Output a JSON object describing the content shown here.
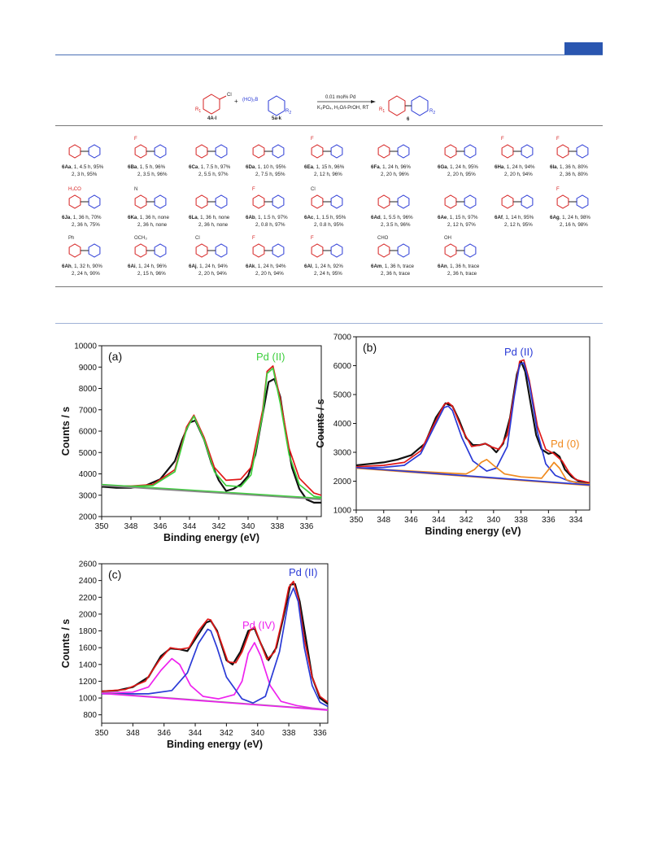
{
  "scheme": {
    "reactant1": "4A-l",
    "reactant1_sub": "R",
    "reactant1_sub_idx": "1",
    "reactant1_group": "Cl",
    "plus": "+",
    "reactant2_group": "(HO)₂B",
    "reactant2": "5a-k",
    "reactant2_sub": "R",
    "reactant2_sub_idx": "2",
    "catalyst": "0.01 mol% Pd",
    "conditions": "K₃PO₄, H₂O/i-PrOH, RT",
    "product": "6",
    "product_r1": "R",
    "product_r1_idx": "1",
    "product_r2": "R",
    "product_r2_idx": "2"
  },
  "products": [
    {
      "id": "6Aa",
      "l1": ", 1, 4.5 h, 95%",
      "l2": "2, 3 h, 95%",
      "sub": ""
    },
    {
      "id": "6Ba",
      "l1": ", 1, 5 h, 96%",
      "l2": "2, 3.5 h, 96%",
      "sub": "F"
    },
    {
      "id": "6Ca",
      "l1": ", 1, 7.5 h, 97%",
      "l2": "2, 5.5 h, 97%",
      "sub": ""
    },
    {
      "id": "6Da",
      "l1": ", 1, 10 h, 95%",
      "l2": "2, 7.5 h, 95%",
      "sub": ""
    },
    {
      "id": "6Ea",
      "l1": ", 1, 15 h, 96%",
      "l2": "2, 12 h, 96%",
      "sub": "F"
    },
    {
      "id": "6Fa",
      "l1": ", 1, 24 h, 96%",
      "l2": "2, 20 h, 96%",
      "sub": ""
    },
    {
      "id": "6Ga",
      "l1": ", 1, 24 h, 95%",
      "l2": "2, 20 h, 95%",
      "sub": ""
    },
    {
      "id": "6Ha",
      "l1": ", 1, 24 h, 94%",
      "l2": "2, 20 h, 94%",
      "sub": "F"
    },
    {
      "id": "6Ia",
      "l1": ", 1, 36 h, 80%",
      "l2": "2, 36 h, 80%",
      "sub": "F"
    },
    {
      "id": "6Ja",
      "l1": ", 1, 36 h, 70%",
      "l2": "2, 36 h, 75%",
      "sub": "H₃CO"
    },
    {
      "id": "6Ka",
      "l1": ", 1, 36 h, none",
      "l2": "2, 36 h, none",
      "sub": "N"
    },
    {
      "id": "6La",
      "l1": ", 1, 36 h, none",
      "l2": "2, 36 h, none",
      "sub": ""
    },
    {
      "id": "6Ab",
      "l1": ", 1, 1.5 h, 97%",
      "l2": "2, 0.8 h, 97%",
      "sub": "F"
    },
    {
      "id": "6Ac",
      "l1": ", 1, 1.5 h, 95%",
      "l2": "2, 0.8 h, 95%",
      "sub": "Cl"
    },
    {
      "id": "6Ad",
      "l1": ", 1, 5.5 h, 96%",
      "l2": "2, 3.5 h, 96%",
      "sub": ""
    },
    {
      "id": "6Ae",
      "l1": ", 1, 15 h, 97%",
      "l2": "2, 12 h, 97%",
      "sub": ""
    },
    {
      "id": "6Af",
      "l1": ", 1, 14 h, 95%",
      "l2": "2, 12 h, 95%",
      "sub": ""
    },
    {
      "id": "6Ag",
      "l1": ", 1, 24 h, 98%",
      "l2": "2, 16 h, 98%",
      "sub": "F"
    },
    {
      "id": "6Ah",
      "l1": ", 1, 32 h, 90%",
      "l2": "2, 24 h, 90%",
      "sub": "Ph"
    },
    {
      "id": "6Ai",
      "l1": ", 1, 24 h, 96%",
      "l2": "2, 15 h, 96%",
      "sub": "OCH₃"
    },
    {
      "id": "6Aj",
      "l1": ", 1, 24 h, 94%",
      "l2": "2, 20 h, 94%",
      "sub": "Cl"
    },
    {
      "id": "6Ak",
      "l1": ", 1, 24 h, 94%",
      "l2": "2, 20 h, 94%",
      "sub": "F"
    },
    {
      "id": "6Al",
      "l1": ", 1, 24 h, 92%",
      "l2": "2, 24 h, 95%",
      "sub": "F"
    },
    {
      "id": "6Am",
      "l1": ", 1, 36 h, trace",
      "l2": "2, 36 h, trace",
      "sub": "CHO"
    },
    {
      "id": "6An",
      "l1": ", 1, 36 h, trace",
      "l2": "2, 36 h, trace",
      "sub": "OH"
    }
  ],
  "colors": {
    "red": "#d62020",
    "blue": "#2a3ad6",
    "green": "#3ecf3e",
    "orange": "#f08a1e",
    "magenta": "#ee22ee",
    "black": "#111111"
  },
  "chart_data": [
    {
      "type": "line",
      "panel": "(a)",
      "xlabel": "Binding energy (eV)",
      "ylabel": "Counts / s",
      "xlim": [
        350,
        335
      ],
      "ylim": [
        2000,
        10000
      ],
      "xticks": [
        350,
        348,
        346,
        344,
        342,
        340,
        338,
        336
      ],
      "yticks": [
        2000,
        3000,
        4000,
        5000,
        6000,
        7000,
        8000,
        9000,
        10000
      ],
      "annotations": [
        {
          "text": "Pd (II)",
          "color": "green"
        }
      ],
      "series": [
        {
          "color": "black",
          "x": [
            350,
            349,
            348,
            347,
            346,
            345,
            344.5,
            344,
            343.6,
            343,
            342.5,
            342,
            341.5,
            341,
            340.5,
            340,
            339.5,
            339,
            338.6,
            338.2,
            337.8,
            337.4,
            337,
            336.5,
            336,
            335.5,
            335
          ],
          "y": [
            3400,
            3350,
            3350,
            3450,
            3750,
            4600,
            5600,
            6400,
            6500,
            5600,
            4500,
            3700,
            3200,
            3300,
            3500,
            3900,
            4900,
            6800,
            8300,
            8450,
            7600,
            5800,
            4300,
            3300,
            2800,
            2650,
            2650
          ]
        },
        {
          "color": "red",
          "x": [
            350,
            348,
            346.5,
            345,
            344.2,
            343.7,
            343,
            342.3,
            341.5,
            340.5,
            339.8,
            339,
            338.7,
            338.3,
            337.8,
            337.2,
            336.5,
            335.5,
            335
          ],
          "y": [
            3450,
            3430,
            3500,
            4200,
            6200,
            6750,
            5700,
            4300,
            3700,
            3750,
            4300,
            7000,
            8800,
            9050,
            7500,
            5200,
            3800,
            3100,
            3000
          ]
        },
        {
          "color": "green",
          "x": [
            350,
            348,
            346.5,
            345,
            344.2,
            343.7,
            343,
            342.3,
            341.5,
            340.5,
            339.8,
            339,
            338.7,
            338.3,
            337.8,
            337.2,
            336.5,
            335.5,
            335
          ],
          "y": [
            3450,
            3420,
            3450,
            4100,
            6100,
            6700,
            5600,
            4100,
            3450,
            3400,
            3950,
            6800,
            8700,
            8950,
            7300,
            4900,
            3500,
            2950,
            2900
          ]
        },
        {
          "color": "green",
          "x": [
            350,
            335
          ],
          "y": [
            3500,
            2850
          ]
        },
        {
          "color": "gray",
          "x": [
            350,
            335
          ],
          "y": [
            3450,
            2800
          ]
        }
      ]
    },
    {
      "type": "line",
      "panel": "(b)",
      "xlabel": "Binding energy (eV)",
      "ylabel": "Counts / s",
      "xlim": [
        350,
        333
      ],
      "ylim": [
        1000,
        7000
      ],
      "xticks": [
        350,
        348,
        346,
        344,
        342,
        340,
        338,
        336,
        334
      ],
      "yticks": [
        1000,
        2000,
        3000,
        4000,
        5000,
        6000,
        7000
      ],
      "annotations": [
        {
          "text": "Pd (II)",
          "color": "blue"
        },
        {
          "text": "Pd (0)",
          "color": "orange"
        }
      ],
      "series": [
        {
          "color": "black",
          "x": [
            350,
            349,
            348,
            347,
            346,
            345,
            344.2,
            343.5,
            343,
            342.5,
            342,
            341.5,
            341,
            340.6,
            340.2,
            339.8,
            339.3,
            338.8,
            338.3,
            338,
            337.7,
            337.3,
            336.9,
            336.5,
            336,
            335.6,
            335.2,
            334.8,
            334.3,
            333.8,
            333
          ],
          "y": [
            2550,
            2600,
            2650,
            2750,
            2900,
            3300,
            4200,
            4700,
            4600,
            4100,
            3500,
            3250,
            3250,
            3300,
            3200,
            3000,
            3300,
            4200,
            5700,
            6150,
            5800,
            4700,
            3600,
            3100,
            2950,
            3000,
            2850,
            2400,
            2150,
            2000,
            1900
          ]
        },
        {
          "color": "red",
          "x": [
            350,
            348,
            346.5,
            345.3,
            344.3,
            343.6,
            343.3,
            343,
            342.3,
            341.6,
            341,
            340.6,
            340.2,
            339.6,
            339,
            338.5,
            338.1,
            337.8,
            337.4,
            336.8,
            336.2,
            335.6,
            335,
            334.5,
            334,
            333
          ],
          "y": [
            2500,
            2550,
            2650,
            3050,
            4000,
            4650,
            4720,
            4600,
            3800,
            3200,
            3250,
            3300,
            3200,
            3100,
            3600,
            5000,
            6150,
            6200,
            5500,
            3900,
            3100,
            2950,
            2700,
            2300,
            2050,
            1950
          ]
        },
        {
          "color": "blue",
          "x": [
            350,
            348,
            346.5,
            345.3,
            344.3,
            343.6,
            343.3,
            343,
            342.3,
            341.5,
            340.5,
            339.8,
            339,
            338.5,
            338.1,
            337.8,
            337.4,
            336.8,
            336.2,
            335.5,
            334.5,
            333
          ],
          "y": [
            2450,
            2480,
            2550,
            2950,
            3900,
            4550,
            4600,
            4450,
            3500,
            2700,
            2350,
            2450,
            3200,
            4900,
            6050,
            6100,
            5400,
            3700,
            2600,
            2200,
            2000,
            1900
          ]
        },
        {
          "color": "orange",
          "x": [
            350,
            342,
            341.4,
            340.9,
            340.5,
            340,
            339.2,
            338,
            336.5,
            336,
            335.6,
            335.2,
            334.7,
            334,
            333
          ],
          "y": [
            2450,
            2250,
            2400,
            2650,
            2750,
            2550,
            2250,
            2150,
            2100,
            2400,
            2650,
            2450,
            2050,
            1950,
            1900
          ]
        },
        {
          "color": "orange",
          "x": [
            350,
            333
          ],
          "y": [
            2450,
            1850
          ]
        },
        {
          "color": "blue",
          "x": [
            350,
            333
          ],
          "y": [
            2470,
            1870
          ]
        }
      ]
    },
    {
      "type": "line",
      "panel": "(c)",
      "xlabel": "Binding energy (eV)",
      "ylabel": "Counts / s",
      "xlim": [
        350,
        335.5
      ],
      "ylim": [
        700,
        2600
      ],
      "xticks": [
        350,
        348,
        346,
        344,
        342,
        340,
        338,
        336
      ],
      "yticks": [
        800,
        1000,
        1200,
        1400,
        1600,
        1800,
        2000,
        2200,
        2400,
        2600
      ],
      "annotations": [
        {
          "text": "Pd (II)",
          "color": "blue"
        },
        {
          "text": "Pd (IV)",
          "color": "magenta"
        }
      ],
      "series": [
        {
          "color": "black",
          "x": [
            350,
            349,
            348,
            347,
            346.2,
            345.6,
            345,
            344.5,
            344,
            343.3,
            343,
            342.6,
            342,
            341.6,
            341.1,
            340.6,
            340.2,
            339.8,
            339.3,
            338.8,
            338.3,
            337.9,
            337.6,
            337.3,
            336.9,
            336.5,
            336,
            335.5
          ],
          "y": [
            1080,
            1090,
            1130,
            1250,
            1500,
            1590,
            1580,
            1560,
            1700,
            1900,
            1920,
            1800,
            1450,
            1400,
            1550,
            1800,
            1830,
            1650,
            1450,
            1600,
            2000,
            2350,
            2360,
            2150,
            1700,
            1250,
            1000,
            930
          ]
        },
        {
          "color": "red",
          "x": [
            350,
            348.5,
            347.2,
            346.3,
            345.6,
            345,
            344.4,
            343.8,
            343.2,
            343,
            342.5,
            341.9,
            341.4,
            341,
            340.5,
            340.2,
            339.9,
            339.4,
            338.9,
            338.4,
            338,
            337.7,
            337.4,
            337,
            336.5,
            336,
            335.5
          ],
          "y": [
            1080,
            1100,
            1200,
            1450,
            1600,
            1580,
            1600,
            1800,
            1940,
            1930,
            1750,
            1430,
            1420,
            1550,
            1800,
            1850,
            1700,
            1460,
            1550,
            1950,
            2320,
            2390,
            2200,
            1700,
            1250,
            1020,
            950
          ]
        },
        {
          "color": "magenta",
          "x": [
            350,
            348,
            347,
            346.2,
            345.5,
            345,
            344.3,
            343.5,
            342.5,
            341.5,
            341,
            340.6,
            340.2,
            339.8,
            339.2,
            338.5,
            337.5,
            336.5,
            335.5
          ],
          "y": [
            1060,
            1070,
            1130,
            1330,
            1470,
            1400,
            1150,
            1020,
            990,
            1040,
            1200,
            1530,
            1660,
            1500,
            1150,
            960,
            910,
            880,
            860
          ]
        },
        {
          "color": "blue",
          "x": [
            350,
            347,
            345.5,
            344.5,
            343.8,
            343.2,
            343,
            342.6,
            342,
            341,
            340.3,
            339.5,
            338.6,
            338,
            337.7,
            337.4,
            337,
            336.5,
            336,
            335.5
          ],
          "y": [
            1050,
            1050,
            1090,
            1300,
            1650,
            1820,
            1800,
            1600,
            1250,
            990,
            940,
            1020,
            1550,
            2180,
            2310,
            2150,
            1600,
            1150,
            950,
            900
          ]
        },
        {
          "color": "gray",
          "x": [
            350,
            335.5
          ],
          "y": [
            1060,
            860
          ]
        },
        {
          "color": "magenta",
          "x": [
            350,
            335.5
          ],
          "y": [
            1055,
            855
          ]
        }
      ]
    }
  ]
}
